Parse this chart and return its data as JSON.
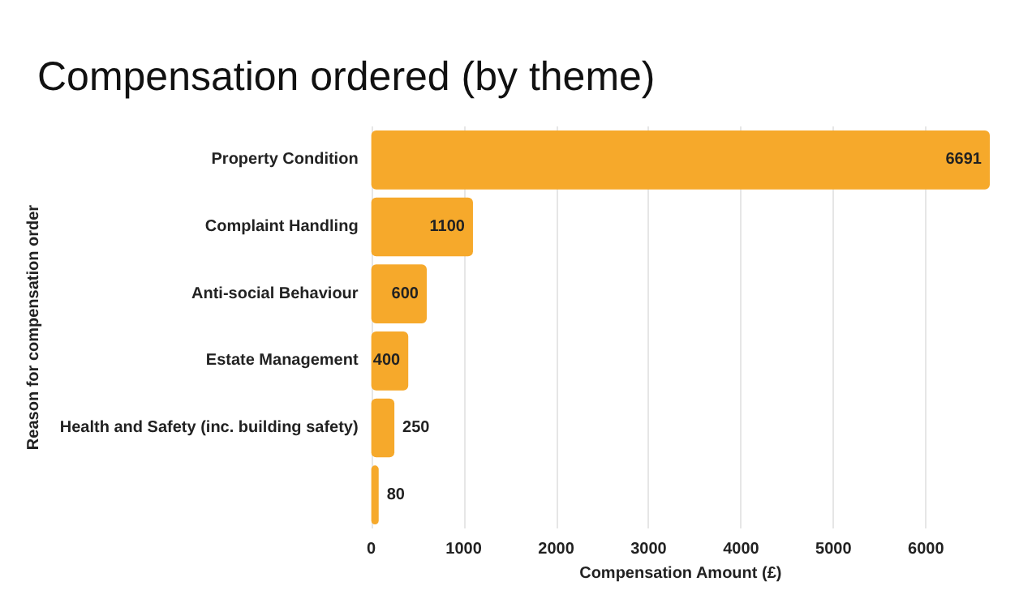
{
  "chart_data": {
    "type": "bar",
    "orientation": "horizontal",
    "title": "Compensation ordered (by theme)",
    "xlabel": "Compensation Amount (£)",
    "ylabel": "Reason for compensation order",
    "categories": [
      "Property Condition",
      "Complaint Handling",
      "Anti-social Behaviour",
      "Estate Management",
      "Health and Safety (inc. building safety)",
      null
    ],
    "values": [
      6691,
      1100,
      600,
      400,
      250,
      80
    ],
    "color": "#f6a92b",
    "xlim": [
      0,
      6691
    ],
    "xticks": [
      0,
      1000,
      2000,
      3000,
      4000,
      5000,
      6000
    ],
    "grid": "x",
    "data_labels": true
  }
}
